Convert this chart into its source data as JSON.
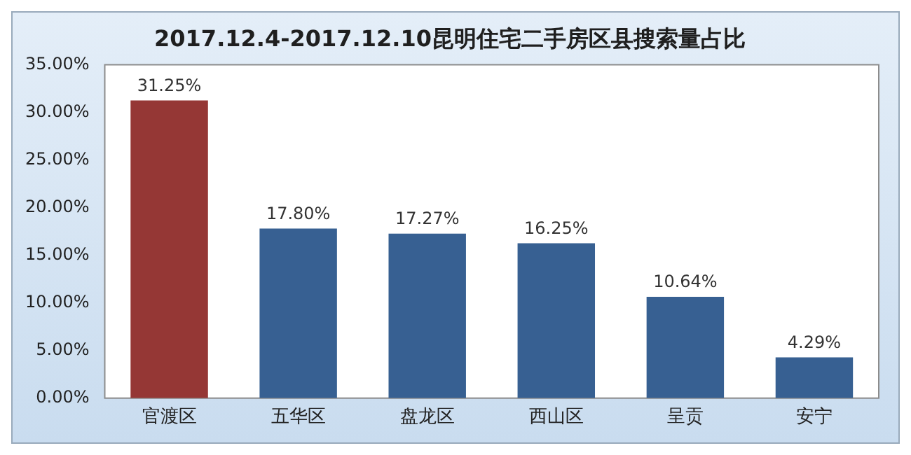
{
  "chart_data": {
    "type": "bar",
    "title": "2017.12.4-2017.12.10昆明住宅二手房区县搜索量占比",
    "categories": [
      "官渡区",
      "五华区",
      "盘龙区",
      "西山区",
      "呈贡",
      "安宁"
    ],
    "values": [
      31.25,
      17.8,
      17.27,
      16.25,
      10.64,
      4.29
    ],
    "colors": [
      "#953735",
      "#376092",
      "#376092",
      "#376092",
      "#376092",
      "#376092"
    ],
    "value_labels": [
      "31.25%",
      "17.80%",
      "17.27%",
      "16.25%",
      "10.64%",
      "4.29%"
    ],
    "ylim": [
      0,
      35
    ],
    "yticks": [
      {
        "value": 0,
        "label": "0.00%"
      },
      {
        "value": 5,
        "label": "5.00%"
      },
      {
        "value": 10,
        "label": "10.00%"
      },
      {
        "value": 15,
        "label": "15.00%"
      },
      {
        "value": 20,
        "label": "20.00%"
      },
      {
        "value": 25,
        "label": "25.00%"
      },
      {
        "value": 30,
        "label": "30.00%"
      },
      {
        "value": 35,
        "label": "35.00%"
      }
    ],
    "grid": false,
    "legend": false
  }
}
